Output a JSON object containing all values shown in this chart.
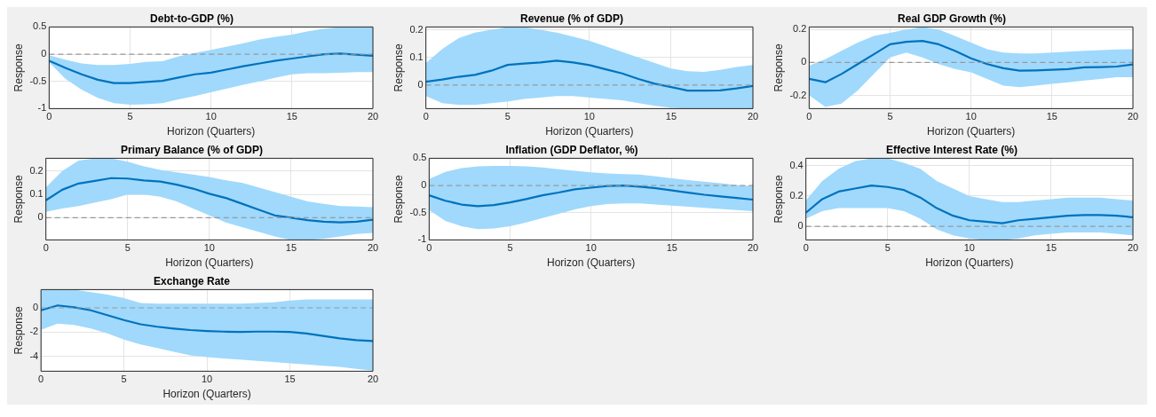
{
  "chart_data": [
    {
      "type": "line",
      "title": "Debt-to-GDP (%)",
      "xlabel": "Horizon (Quarters)",
      "ylabel": "Response",
      "x": [
        0,
        1,
        2,
        3,
        4,
        5,
        6,
        7,
        8,
        9,
        10,
        11,
        12,
        13,
        14,
        15,
        16,
        17,
        18,
        19,
        20
      ],
      "xlim": [
        0,
        20
      ],
      "xticks": [
        0,
        5,
        10,
        15,
        20
      ],
      "ylim": [
        -1,
        0.5
      ],
      "yticks": [
        -1,
        -0.5,
        0,
        0.5
      ],
      "grid": true,
      "marker": "none",
      "line_style": "solid",
      "ref_lines": [
        {
          "axis": "y",
          "value": 0,
          "color": "#999999",
          "line_style": "dashed"
        }
      ],
      "series": [
        {
          "color": "#0072bd",
          "values": [
            -0.12,
            -0.25,
            -0.37,
            -0.47,
            -0.53,
            -0.53,
            -0.51,
            -0.49,
            -0.43,
            -0.37,
            -0.34,
            -0.28,
            -0.22,
            -0.17,
            -0.12,
            -0.08,
            -0.04,
            0,
            0.01,
            -0.01,
            -0.03
          ],
          "lower": [
            -0.15,
            -0.45,
            -0.65,
            -0.8,
            -0.9,
            -0.93,
            -0.92,
            -0.9,
            -0.83,
            -0.77,
            -0.7,
            -0.63,
            -0.56,
            -0.5,
            -0.43,
            -0.37,
            -0.35,
            -0.35,
            -0.34,
            -0.33,
            -0.33
          ],
          "upper": [
            -0.02,
            -0.1,
            -0.17,
            -0.2,
            -0.2,
            -0.18,
            -0.14,
            -0.13,
            -0.04,
            0.02,
            0.08,
            0.14,
            0.2,
            0.27,
            0.32,
            0.36,
            0.42,
            0.47,
            0.5,
            0.5,
            0.5
          ]
        }
      ]
    },
    {
      "type": "line",
      "title": "Revenue (% of GDP)",
      "xlabel": "Horizon (Quarters)",
      "ylabel": "Response",
      "x": [
        0,
        1,
        2,
        3,
        4,
        5,
        6,
        7,
        8,
        9,
        10,
        11,
        12,
        13,
        14,
        15,
        16,
        17,
        18,
        19,
        20
      ],
      "xlim": [
        0,
        20
      ],
      "xticks": [
        0,
        5,
        10,
        15,
        20
      ],
      "ylim": [
        -0.085,
        0.21
      ],
      "yticks": [
        0,
        0.1,
        0.2
      ],
      "grid": true,
      "marker": "none",
      "line_style": "solid",
      "ref_lines": [
        {
          "axis": "y",
          "value": 0,
          "color": "#999999",
          "line_style": "dashed"
        }
      ],
      "series": [
        {
          "color": "#0072bd",
          "values": [
            0.012,
            0.02,
            0.03,
            0.037,
            0.052,
            0.073,
            0.078,
            0.082,
            0.088,
            0.082,
            0.072,
            0.057,
            0.042,
            0.022,
            0.005,
            -0.007,
            -0.02,
            -0.02,
            -0.019,
            -0.012,
            -0.003
          ],
          "lower": [
            -0.04,
            -0.065,
            -0.072,
            -0.072,
            -0.065,
            -0.06,
            -0.05,
            -0.045,
            -0.04,
            -0.04,
            -0.045,
            -0.05,
            -0.055,
            -0.065,
            -0.075,
            -0.082,
            -0.085,
            -0.085,
            -0.085,
            -0.085,
            -0.085
          ],
          "upper": [
            0.08,
            0.13,
            0.17,
            0.19,
            0.2,
            0.21,
            0.21,
            0.2,
            0.19,
            0.175,
            0.16,
            0.14,
            0.12,
            0.1,
            0.08,
            0.06,
            0.05,
            0.048,
            0.055,
            0.065,
            0.073
          ]
        }
      ]
    },
    {
      "type": "line",
      "title": "Real GDP Growth (%)",
      "xlabel": "Horizon (Quarters)",
      "ylabel": "Response",
      "x": [
        0,
        1,
        2,
        3,
        4,
        5,
        6,
        7,
        8,
        9,
        10,
        11,
        12,
        13,
        14,
        15,
        16,
        17,
        18,
        19,
        20
      ],
      "xlim": [
        0,
        20
      ],
      "xticks": [
        0,
        5,
        10,
        15,
        20
      ],
      "ylim": [
        -0.28,
        0.215
      ],
      "yticks": [
        -0.2,
        0,
        0.2
      ],
      "grid": true,
      "marker": "none",
      "line_style": "solid",
      "ref_lines": [
        {
          "axis": "y",
          "value": 0,
          "color": "#999999",
          "line_style": "dashed"
        }
      ],
      "series": [
        {
          "color": "#0072bd",
          "values": [
            -0.1,
            -0.12,
            -0.07,
            -0.01,
            0.05,
            0.11,
            0.125,
            0.13,
            0.11,
            0.07,
            0.025,
            -0.01,
            -0.035,
            -0.05,
            -0.048,
            -0.045,
            -0.04,
            -0.03,
            -0.028,
            -0.025,
            -0.012
          ],
          "lower": [
            -0.2,
            -0.27,
            -0.25,
            -0.17,
            -0.07,
            0.03,
            0.06,
            0.03,
            -0.01,
            -0.04,
            -0.06,
            -0.1,
            -0.14,
            -0.15,
            -0.14,
            -0.13,
            -0.12,
            -0.11,
            -0.1,
            -0.09,
            -0.09
          ],
          "upper": [
            -0.02,
            0.02,
            0.07,
            0.12,
            0.16,
            0.18,
            0.2,
            0.215,
            0.2,
            0.16,
            0.12,
            0.08,
            0.06,
            0.055,
            0.055,
            0.06,
            0.065,
            0.07,
            0.075,
            0.078,
            0.08
          ]
        }
      ]
    },
    {
      "type": "line",
      "title": "Primary Balance (% of GDP)",
      "xlabel": "Horizon (Quarters)",
      "ylabel": "Response",
      "x": [
        0,
        1,
        2,
        3,
        4,
        5,
        6,
        7,
        8,
        9,
        10,
        11,
        12,
        13,
        14,
        15,
        16,
        17,
        18,
        19,
        20
      ],
      "xlim": [
        0,
        20
      ],
      "xticks": [
        0,
        5,
        10,
        15,
        20
      ],
      "ylim": [
        -0.095,
        0.255
      ],
      "yticks": [
        0,
        0.1,
        0.2
      ],
      "grid": true,
      "marker": "none",
      "line_style": "solid",
      "ref_lines": [
        {
          "axis": "y",
          "value": 0,
          "color": "#999999",
          "line_style": "dashed"
        }
      ],
      "series": [
        {
          "color": "#0072bd",
          "values": [
            0.075,
            0.12,
            0.147,
            0.158,
            0.17,
            0.168,
            0.16,
            0.155,
            0.142,
            0.125,
            0.103,
            0.085,
            0.06,
            0.035,
            0.01,
            0,
            -0.01,
            -0.017,
            -0.02,
            -0.017,
            -0.008
          ],
          "lower": [
            0.025,
            0.04,
            0.05,
            0.065,
            0.08,
            0.1,
            0.1,
            0.09,
            0.07,
            0.04,
            0.01,
            -0.02,
            -0.04,
            -0.06,
            -0.08,
            -0.095,
            -0.095,
            -0.09,
            -0.08,
            -0.07,
            -0.065
          ],
          "upper": [
            0.13,
            0.2,
            0.245,
            0.255,
            0.255,
            0.24,
            0.22,
            0.205,
            0.195,
            0.185,
            0.175,
            0.16,
            0.15,
            0.13,
            0.11,
            0.09,
            0.07,
            0.06,
            0.05,
            0.048,
            0.045
          ]
        }
      ]
    },
    {
      "type": "line",
      "title": "Inflation (GDP Deflator, %)",
      "xlabel": "Horizon (Quarters)",
      "ylabel": "Response",
      "x": [
        0,
        1,
        2,
        3,
        4,
        5,
        6,
        7,
        8,
        9,
        10,
        11,
        12,
        13,
        14,
        15,
        16,
        17,
        18,
        19,
        20
      ],
      "xlim": [
        0,
        20
      ],
      "xticks": [
        0,
        5,
        10,
        15,
        20
      ],
      "ylim": [
        -1,
        0.5
      ],
      "yticks": [
        -1,
        -0.5,
        0,
        0.5
      ],
      "grid": true,
      "marker": "none",
      "line_style": "solid",
      "ref_lines": [
        {
          "axis": "y",
          "value": 0,
          "color": "#999999",
          "line_style": "dashed"
        }
      ],
      "series": [
        {
          "color": "#0072bd",
          "values": [
            -0.18,
            -0.28,
            -0.35,
            -0.38,
            -0.36,
            -0.31,
            -0.25,
            -0.18,
            -0.13,
            -0.07,
            -0.04,
            -0.01,
            0,
            -0.02,
            -0.05,
            -0.09,
            -0.13,
            -0.17,
            -0.2,
            -0.23,
            -0.26
          ],
          "lower": [
            -0.45,
            -0.65,
            -0.75,
            -0.8,
            -0.79,
            -0.75,
            -0.68,
            -0.6,
            -0.52,
            -0.44,
            -0.38,
            -0.34,
            -0.33,
            -0.33,
            -0.35,
            -0.37,
            -0.39,
            -0.41,
            -0.43,
            -0.45,
            -0.47
          ],
          "upper": [
            0.12,
            0.25,
            0.32,
            0.35,
            0.36,
            0.36,
            0.35,
            0.33,
            0.3,
            0.27,
            0.24,
            0.22,
            0.21,
            0.2,
            0.17,
            0.13,
            0.1,
            0.07,
            0.04,
            0.01,
            -0.02
          ]
        }
      ]
    },
    {
      "type": "line",
      "title": "Effective Interest Rate (%)",
      "xlabel": "Horizon (Quarters)",
      "ylabel": "Response",
      "x": [
        0,
        1,
        2,
        3,
        4,
        5,
        6,
        7,
        8,
        9,
        10,
        11,
        12,
        13,
        14,
        15,
        16,
        17,
        18,
        19,
        20
      ],
      "xlim": [
        0,
        20
      ],
      "xticks": [
        0,
        5,
        10,
        15,
        20
      ],
      "ylim": [
        -0.09,
        0.45
      ],
      "yticks": [
        0,
        0.2,
        0.4
      ],
      "grid": true,
      "marker": "none",
      "line_style": "solid",
      "ref_lines": [
        {
          "axis": "y",
          "value": 0,
          "color": "#999999",
          "line_style": "dashed"
        }
      ],
      "series": [
        {
          "color": "#0072bd",
          "values": [
            0.09,
            0.18,
            0.23,
            0.25,
            0.27,
            0.26,
            0.24,
            0.19,
            0.12,
            0.07,
            0.04,
            0.03,
            0.02,
            0.04,
            0.05,
            0.06,
            0.07,
            0.075,
            0.075,
            0.07,
            0.06
          ],
          "lower": [
            0.05,
            0.1,
            0.12,
            0.12,
            0.12,
            0.12,
            0.1,
            0.05,
            -0.02,
            -0.06,
            -0.08,
            -0.09,
            -0.09,
            -0.08,
            -0.06,
            -0.05,
            -0.04,
            -0.04,
            -0.04,
            -0.05,
            -0.06
          ],
          "upper": [
            0.17,
            0.3,
            0.38,
            0.43,
            0.45,
            0.45,
            0.42,
            0.38,
            0.3,
            0.25,
            0.2,
            0.18,
            0.16,
            0.16,
            0.17,
            0.18,
            0.19,
            0.19,
            0.19,
            0.18,
            0.17
          ]
        }
      ]
    },
    {
      "type": "line",
      "title": "Exchange Rate",
      "xlabel": "Horizon (Quarters)",
      "ylabel": "Response",
      "x": [
        0,
        1,
        2,
        3,
        4,
        5,
        6,
        7,
        8,
        9,
        10,
        11,
        12,
        13,
        14,
        15,
        16,
        17,
        18,
        19,
        20
      ],
      "xlim": [
        0,
        20
      ],
      "xticks": [
        0,
        5,
        10,
        15,
        20
      ],
      "ylim": [
        -5.2,
        1.5
      ],
      "yticks": [
        -4,
        -2,
        0
      ],
      "grid": true,
      "marker": "none",
      "line_style": "solid",
      "ref_lines": [
        {
          "axis": "y",
          "value": 0,
          "color": "#999999",
          "line_style": "dashed"
        }
      ],
      "series": [
        {
          "color": "#0072bd",
          "values": [
            -0.2,
            0.2,
            0.05,
            -0.2,
            -0.6,
            -1,
            -1.35,
            -1.55,
            -1.7,
            -1.82,
            -1.9,
            -1.95,
            -1.97,
            -1.95,
            -1.95,
            -1.97,
            -2.1,
            -2.3,
            -2.5,
            -2.65,
            -2.72
          ],
          "lower": [
            -1.8,
            -1.3,
            -1.4,
            -1.7,
            -2.1,
            -2.6,
            -3,
            -3.3,
            -3.6,
            -3.9,
            -4.05,
            -4.15,
            -4.25,
            -4.35,
            -4.45,
            -4.55,
            -4.65,
            -4.75,
            -4.85,
            -5,
            -5.15
          ],
          "upper": [
            1.5,
            1.5,
            1.5,
            1.3,
            1.1,
            0.8,
            0.4,
            0.35,
            0.35,
            0.35,
            0.35,
            0.35,
            0.35,
            0.4,
            0.45,
            0.6,
            0.7,
            0.7,
            0.7,
            0.7,
            0.7
          ]
        }
      ]
    }
  ]
}
